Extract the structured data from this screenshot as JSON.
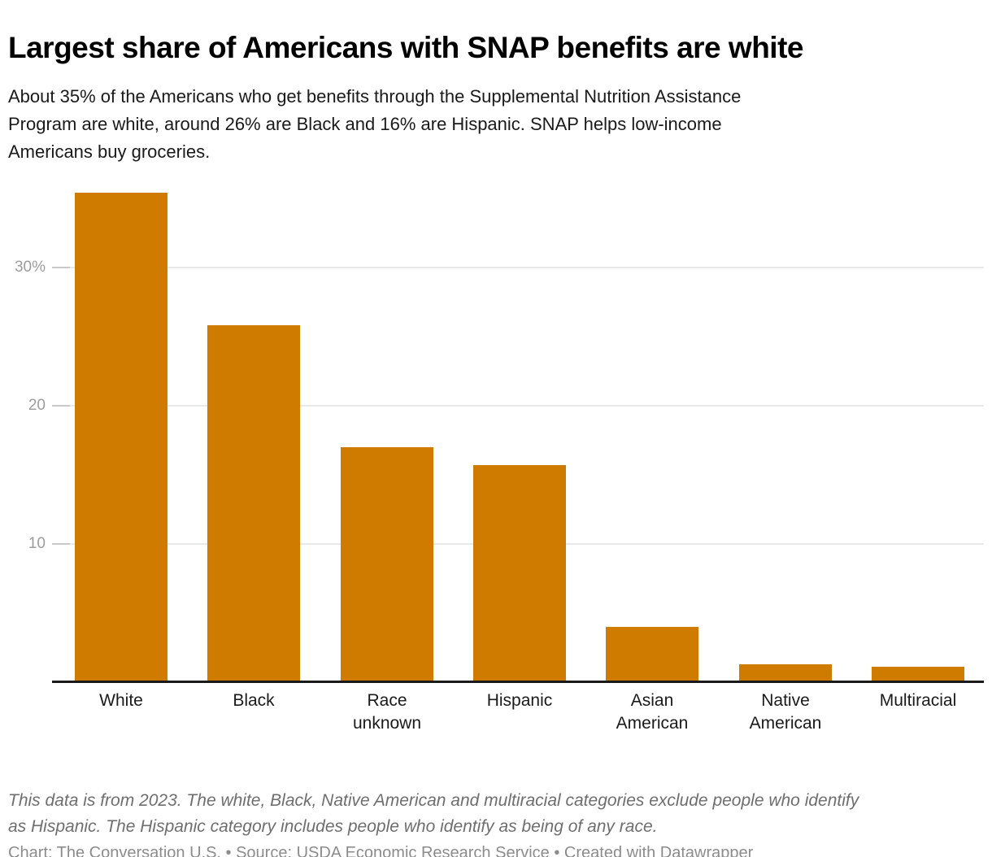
{
  "header": {
    "title": "Largest share of Americans with SNAP benefits are white",
    "subtitle_lines": [
      "About 35% of the Americans who get benefits through the Supplemental Nutrition Assistance",
      "Program are white, around 26% are Black and 16% are Hispanic. SNAP helps low-income",
      "Americans buy groceries."
    ]
  },
  "chart_data": {
    "type": "bar",
    "title": "Largest share of Americans with SNAP benefits are white",
    "categories": [
      "White",
      "Black",
      "Race unknown",
      "Hispanic",
      "Asian American",
      "Native American",
      "Multiracial"
    ],
    "category_label_lines": [
      [
        "White"
      ],
      [
        "Black"
      ],
      [
        "Race",
        "unknown"
      ],
      [
        "Hispanic"
      ],
      [
        "Asian",
        "American"
      ],
      [
        "Native",
        "American"
      ],
      [
        "Multiracial"
      ]
    ],
    "values": [
      35.3,
      25.7,
      16.9,
      15.6,
      3.9,
      1.2,
      1.0
    ],
    "unit": "%",
    "xlabel": "",
    "ylabel": "",
    "ylim": [
      0,
      36
    ],
    "yticks": [
      {
        "value": 30,
        "label": "30%"
      },
      {
        "value": 20,
        "label": "20"
      },
      {
        "value": 10,
        "label": "10"
      }
    ],
    "grid": "horizontal gridlines on, drawn behind bars",
    "legend_position": "none"
  },
  "footer": {
    "note_lines": [
      "This data is from 2023. The white, Black, Native American and multiracial categories exclude people who identify",
      "as Hispanic. The Hispanic category includes people who identify as being of any race."
    ],
    "credits": "Chart: The Conversation U.S. • Source: USDA Economic Research Service • Created with Datawrapper"
  },
  "colors": {
    "bar": "#CE7B00",
    "axis_line": "#1a1a1a",
    "gridline": "#e9e9e9",
    "grid_tick": "#c9c9c9",
    "y_label": "#9d9d9d",
    "x_label": "#1a1a1a",
    "title_text": "#000000",
    "subtitle_text": "#1a1a1a",
    "note_text": "#6e6e6e",
    "credits_text": "#8c8c8c",
    "background": "#ffffff"
  }
}
